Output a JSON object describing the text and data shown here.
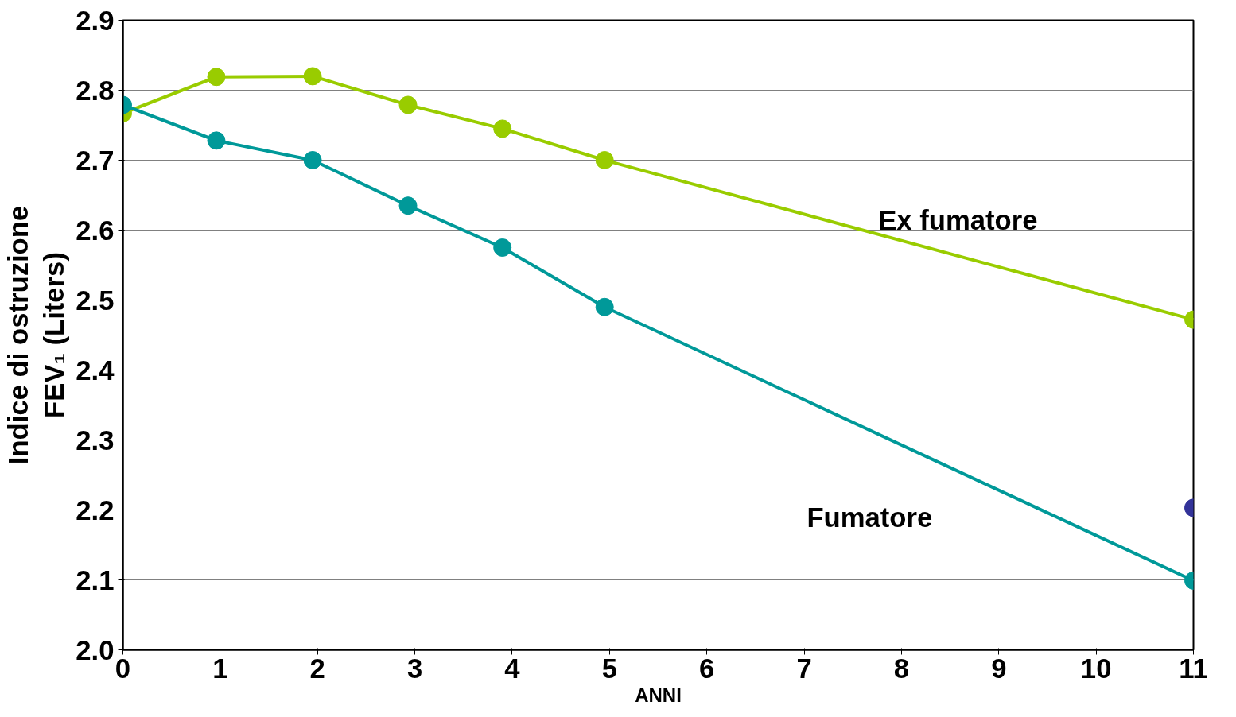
{
  "chart_data": {
    "type": "line",
    "xlabel": "ANNI",
    "ylabel": "Indice di ostruzione\nFEV₁ (Liters)",
    "xlim": [
      0,
      11
    ],
    "xticks": [
      0,
      1,
      2,
      3,
      4,
      5,
      6,
      7,
      8,
      9,
      10,
      11
    ],
    "ylim": [
      2.0,
      2.9
    ],
    "yticks": [
      {
        "value": 2.0,
        "label": "2.0"
      },
      2.1,
      2.2,
      2.3,
      2.4,
      2.5,
      2.6,
      2.7,
      2.8,
      2.9
    ],
    "grid": "y",
    "marker": "circle",
    "line_style": "solid",
    "series": [
      {
        "name": "Ex fumatore",
        "color": "#99cc00",
        "x": [
          0,
          0.96,
          1.95,
          2.93,
          3.9,
          4.95,
          11
        ],
        "values": [
          2.767,
          2.819,
          2.82,
          2.779,
          2.745,
          2.7,
          2.472
        ]
      },
      {
        "name": "Fumatore",
        "color": "#009999",
        "x": [
          0,
          0.96,
          1.95,
          2.93,
          3.9,
          4.95,
          11
        ],
        "values": [
          2.779,
          2.728,
          2.7,
          2.635,
          2.575,
          2.49,
          2.099
        ]
      },
      {
        "type": "scatter",
        "color": "#333399",
        "x": [
          11
        ],
        "values": [
          2.203
        ]
      }
    ]
  }
}
